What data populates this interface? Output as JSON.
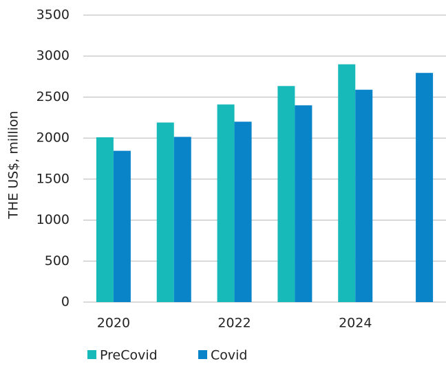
{
  "chart_data": {
    "type": "bar",
    "y_label": "THE US$, million",
    "categories": [
      "2020",
      null,
      "2022",
      null,
      "2024",
      null
    ],
    "series": [
      {
        "name": "PreCovid",
        "color": "#17b9b9",
        "values": [
          2010,
          2190,
          2410,
          2635,
          2900,
          null
        ]
      },
      {
        "name": "Covid",
        "color": "#0a84c9",
        "values": [
          1845,
          2015,
          2200,
          2400,
          2590,
          2795
        ]
      }
    ],
    "ylim": [
      0,
      3500
    ],
    "yticks": [
      0,
      500,
      1000,
      1500,
      2000,
      2500,
      3000,
      3500
    ],
    "grid": true,
    "legend": "bottom"
  }
}
